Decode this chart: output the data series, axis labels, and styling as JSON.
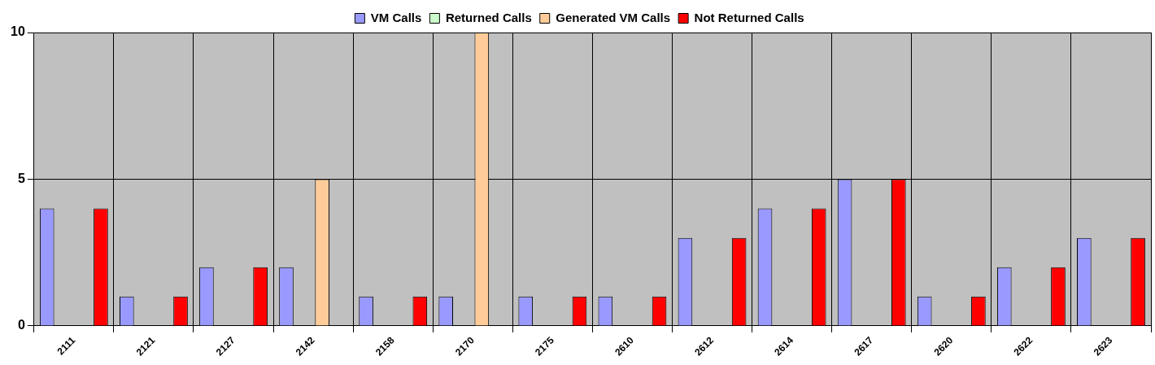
{
  "chart_data": {
    "type": "bar",
    "categories": [
      "2111",
      "2121",
      "2127",
      "2142",
      "2158",
      "2170",
      "2175",
      "2610",
      "2612",
      "2614",
      "2617",
      "2620",
      "2622",
      "2623"
    ],
    "series": [
      {
        "name": "VM Calls",
        "color": "#9999ff",
        "values": [
          4,
          1,
          2,
          2,
          1,
          1,
          1,
          1,
          3,
          4,
          5,
          1,
          2,
          3
        ]
      },
      {
        "name": "Returned Calls",
        "color": "#ccffcc",
        "values": [
          0,
          0,
          0,
          0,
          0,
          0,
          0,
          0,
          0,
          0,
          0,
          0,
          0,
          0
        ]
      },
      {
        "name": "Generated VM Calls",
        "color": "#ffcc99",
        "values": [
          0,
          0,
          0,
          5,
          0,
          10,
          0,
          0,
          0,
          0,
          0,
          0,
          0,
          0
        ]
      },
      {
        "name": "Not Returned Calls",
        "color": "#ff0000",
        "values": [
          4,
          1,
          2,
          0,
          1,
          0,
          1,
          1,
          3,
          4,
          5,
          1,
          2,
          3
        ]
      }
    ],
    "ylim": [
      0,
      10
    ],
    "yticks": [
      0,
      5,
      10
    ],
    "grid": true,
    "legend": "top"
  }
}
